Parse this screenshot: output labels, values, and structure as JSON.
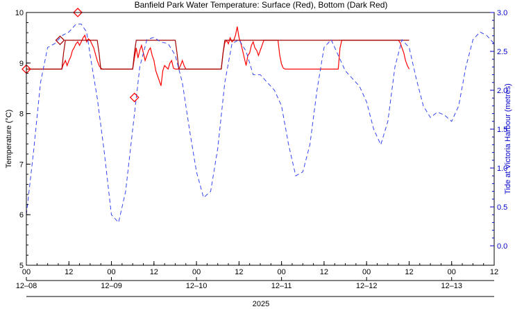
{
  "chart_data": {
    "type": "line",
    "title": "Banfield Park Water Temperature: Surface (Red), Bottom (Dark Red)",
    "ylabel_left": "Temperature (°C)",
    "ylabel_right": "Tide at Victoria Harbour (metres)",
    "year_label": "2025",
    "ylim_left": [
      5,
      10
    ],
    "ylim_right": [
      -0.25,
      3.0
    ],
    "xlim_hours": [
      0,
      132
    ],
    "left_ticks": [
      "5",
      "6",
      "7",
      "8",
      "9",
      "10"
    ],
    "right_ticks": [
      "0.0",
      "0.5",
      "1.0",
      "1.5",
      "2.0",
      "2.5",
      "3.0"
    ],
    "hour_ticks": [
      "00",
      "12",
      "00",
      "12",
      "00",
      "12",
      "00",
      "12",
      "00",
      "12",
      "00",
      "12"
    ],
    "date_labels": [
      "12–08",
      "12–09",
      "12–10",
      "12–11",
      "12–12",
      "12–13"
    ],
    "colors": {
      "surface": "#ff0000",
      "bottom": "#a00000",
      "tide": "#3344ee",
      "axis_right": "#0000cc"
    },
    "series": [
      {
        "name": "Surface",
        "x_hours": [
          0,
          10,
          10.3,
          11,
          11.5,
          12,
          12.5,
          13,
          13.3,
          13.6,
          14,
          14.5,
          15,
          15.5,
          16,
          16.5,
          17,
          17.5,
          18,
          19,
          20,
          20.5,
          21,
          21.5,
          22,
          30,
          30.5,
          31,
          31.5,
          32,
          32.5,
          33,
          33.5,
          34,
          34.5,
          35,
          35.5,
          36,
          36.5,
          37,
          37.5,
          38,
          38.5,
          39,
          40,
          40.5,
          41,
          41.5,
          42,
          43,
          43.5,
          44,
          44.5,
          45,
          46,
          46.5,
          47,
          47.5,
          48,
          55,
          55.5,
          56,
          56.5,
          57,
          57.5,
          58,
          58.5,
          59,
          59.5,
          60,
          60.5,
          61,
          61.5,
          62,
          62.5,
          63,
          63.5,
          64,
          64.5,
          65,
          65.5,
          66,
          66.5,
          67,
          71,
          71.5,
          72,
          72.5,
          73,
          73.5,
          87,
          87.5,
          88,
          88.5,
          89,
          89.5,
          105,
          105.5,
          106,
          106.5,
          107,
          107.5,
          108
        ],
        "y": [
          8.88,
          8.88,
          8.95,
          9.05,
          8.95,
          9.05,
          9.12,
          9.25,
          9.28,
          9.32,
          9.38,
          9.42,
          9.35,
          9.42,
          9.5,
          9.55,
          9.42,
          9.48,
          9.45,
          9.3,
          9.05,
          8.95,
          8.9,
          8.88,
          8.88,
          8.88,
          9.1,
          9.3,
          9.1,
          9.25,
          9.35,
          9.2,
          9.05,
          9.15,
          9.25,
          9.3,
          9.15,
          9.05,
          8.85,
          8.75,
          8.65,
          8.55,
          8.85,
          8.95,
          8.88,
          9.0,
          9.05,
          8.9,
          8.88,
          8.88,
          8.95,
          9.05,
          8.95,
          8.88,
          8.88,
          8.88,
          8.88,
          8.88,
          8.88,
          8.88,
          9.2,
          9.4,
          9.45,
          9.38,
          9.5,
          9.42,
          9.45,
          9.55,
          9.72,
          9.5,
          9.4,
          9.25,
          9.1,
          8.95,
          9.15,
          9.2,
          9.35,
          9.42,
          9.3,
          9.25,
          9.15,
          9.25,
          9.35,
          9.45,
          9.45,
          9.15,
          8.98,
          8.9,
          8.88,
          8.88,
          8.88,
          8.88,
          8.88,
          9.3,
          9.45,
          9.45,
          9.45,
          9.4,
          9.3,
          9.2,
          9.05,
          8.95,
          8.88
        ]
      },
      {
        "name": "Bottom",
        "x_hours": [
          0,
          10,
          10.5,
          11,
          20,
          20.5,
          21,
          30,
          30.5,
          31,
          42,
          42.5,
          43,
          55,
          55.5,
          56,
          64.5,
          65.5,
          66.5,
          67,
          88,
          88.5,
          89,
          107.5,
          108
        ],
        "y": [
          8.88,
          8.88,
          9.2,
          9.45,
          9.45,
          9.2,
          8.88,
          8.88,
          9.2,
          9.45,
          9.45,
          9.2,
          8.88,
          8.88,
          9.2,
          9.45,
          9.45,
          9.45,
          9.45,
          9.45,
          9.45,
          9.45,
          9.45,
          9.45,
          9.45
        ]
      },
      {
        "name": "Tide",
        "x_hours": [
          0,
          2,
          4,
          6,
          8,
          10,
          12,
          14,
          15.5,
          17,
          18,
          20,
          22,
          24,
          26,
          28,
          30,
          32,
          34,
          36,
          38,
          40,
          42,
          44,
          46,
          48,
          50,
          52,
          54,
          56,
          58,
          60,
          62,
          64,
          66,
          68,
          70,
          72,
          74,
          76,
          78,
          80,
          82,
          84,
          86,
          88,
          90,
          92,
          94,
          96,
          98,
          100,
          102,
          104,
          106,
          108,
          110,
          112,
          114,
          116,
          118,
          120,
          122,
          124,
          126,
          128,
          130,
          132
        ],
        "y": [
          0.4,
          1.2,
          2.1,
          2.55,
          2.6,
          2.7,
          2.75,
          2.85,
          2.85,
          2.75,
          2.45,
          1.9,
          1.2,
          0.4,
          0.3,
          0.7,
          1.5,
          2.3,
          2.65,
          2.68,
          2.62,
          2.6,
          2.45,
          2.1,
          1.5,
          0.95,
          0.62,
          0.7,
          1.25,
          2.1,
          2.6,
          2.65,
          2.5,
          2.2,
          2.2,
          2.1,
          2.0,
          1.8,
          1.3,
          0.9,
          0.95,
          1.3,
          2.0,
          2.55,
          2.65,
          2.45,
          2.25,
          2.15,
          2.05,
          1.85,
          1.5,
          1.3,
          1.6,
          2.3,
          2.65,
          2.55,
          2.15,
          1.8,
          1.65,
          1.72,
          1.68,
          1.6,
          1.8,
          2.3,
          2.65,
          2.75,
          2.7,
          2.6
        ]
      }
    ],
    "markers": [
      {
        "name": "Surface",
        "x_hours": 0,
        "y": 8.88,
        "shape": "diamond"
      },
      {
        "name": "Surface",
        "x_hours": 14.5,
        "y": 10.0,
        "shape": "diamond"
      },
      {
        "name": "Surface",
        "x_hours": 30.5,
        "y": 8.32,
        "shape": "diamond"
      },
      {
        "name": "Bottom",
        "x_hours": 9.5,
        "y": 9.45,
        "shape": "diamond"
      }
    ]
  }
}
